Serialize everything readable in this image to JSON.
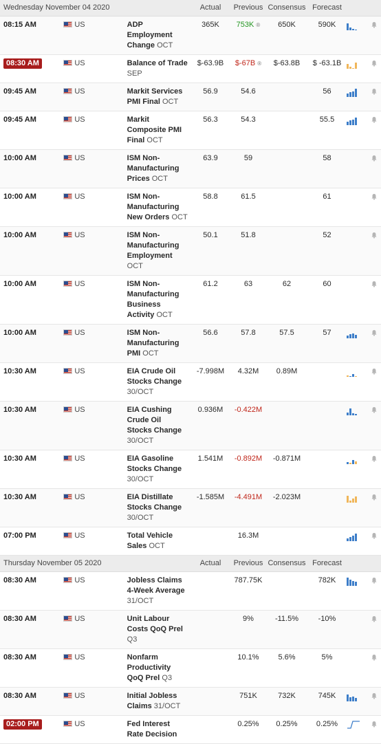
{
  "columns": {
    "actual": "Actual",
    "previous": "Previous",
    "consensus": "Consensus",
    "forecast": "Forecast"
  },
  "colors": {
    "negative": "#c0271b",
    "positive": "#239520",
    "bar_blue": "#3d7ec9",
    "bar_orange": "#f0b65a",
    "badge": "#a81d1d"
  },
  "days": [
    {
      "date": "Wednesday November 04 2020",
      "events": [
        {
          "time": "08:15 AM",
          "country": "US",
          "name": "ADP Employment Change",
          "period": "OCT",
          "actual": "365K",
          "previous": "753K",
          "previous_color": "positive",
          "previous_revised": "®",
          "consensus": "650K",
          "forecast": "590K",
          "spark": [
            10,
            4,
            2,
            1
          ],
          "spark_colors": [
            "blue",
            "blue",
            "blue",
            "blue"
          ]
        },
        {
          "time": "08:30 AM",
          "highlight": true,
          "country": "US",
          "name": "Balance of Trade",
          "period": "SEP",
          "actual": "$-63.9B",
          "previous": "$-67B",
          "previous_color": "negative",
          "previous_revised": "®",
          "consensus": "$-63.8B",
          "forecast": "$ -63.1B",
          "spark": [
            7,
            3,
            1,
            9
          ],
          "spark_colors": [
            "orange",
            "orange",
            "orange",
            "orange"
          ]
        },
        {
          "time": "09:45 AM",
          "country": "US",
          "name": "Markit Services PMI Final",
          "period": "OCT",
          "actual": "56.9",
          "previous": "54.6",
          "consensus": "",
          "forecast": "56",
          "spark": [
            5,
            7,
            8,
            12
          ],
          "spark_colors": [
            "blue",
            "blue",
            "blue",
            "blue"
          ]
        },
        {
          "time": "09:45 AM",
          "country": "US",
          "name": "Markit Composite PMI Final",
          "period": "OCT",
          "actual": "56.3",
          "previous": "54.3",
          "consensus": "",
          "forecast": "55.5",
          "spark": [
            5,
            7,
            8,
            11
          ],
          "spark_colors": [
            "blue",
            "blue",
            "blue",
            "blue"
          ]
        },
        {
          "time": "10:00 AM",
          "country": "US",
          "name": "ISM Non-Manufacturing Prices",
          "period": "OCT",
          "actual": "63.9",
          "previous": "59",
          "consensus": "",
          "forecast": "58",
          "spark": [],
          "spark_colors": []
        },
        {
          "time": "10:00 AM",
          "country": "US",
          "name": "ISM Non-Manufacturing New Orders",
          "period": "OCT",
          "actual": "58.8",
          "previous": "61.5",
          "consensus": "",
          "forecast": "61",
          "spark": [],
          "spark_colors": []
        },
        {
          "time": "10:00 AM",
          "country": "US",
          "name": "ISM Non-Manufacturing Employment",
          "period": "OCT",
          "actual": "50.1",
          "previous": "51.8",
          "consensus": "",
          "forecast": "52",
          "spark": [],
          "spark_colors": []
        },
        {
          "time": "10:00 AM",
          "country": "US",
          "name": "ISM Non-Manufacturing Business Activity",
          "period": "OCT",
          "actual": "61.2",
          "previous": "63",
          "consensus": "62",
          "forecast": "60",
          "spark": [],
          "spark_colors": []
        },
        {
          "time": "10:00 AM",
          "country": "US",
          "name": "ISM Non-Manufacturing PMI",
          "period": "OCT",
          "actual": "56.6",
          "previous": "57.8",
          "consensus": "57.5",
          "forecast": "57",
          "spark": [
            4,
            6,
            7,
            5
          ],
          "spark_colors": [
            "blue",
            "blue",
            "blue",
            "blue"
          ]
        },
        {
          "time": "10:30 AM",
          "country": "US",
          "name": "EIA Crude Oil Stocks Change",
          "period": "30/OCT",
          "actual": "-7.998M",
          "previous": "4.32M",
          "consensus": "0.89M",
          "forecast": "",
          "spark": [
            2,
            1,
            4,
            1
          ],
          "spark_colors": [
            "orange",
            "blue",
            "blue",
            "orange"
          ]
        },
        {
          "time": "10:30 AM",
          "country": "US",
          "name": "EIA Cushing Crude Oil Stocks Change",
          "period": "30/OCT",
          "actual": "0.936M",
          "previous": "-0.422M",
          "previous_color": "negative",
          "consensus": "",
          "forecast": "",
          "spark": [
            4,
            10,
            3,
            2
          ],
          "spark_colors": [
            "blue",
            "blue",
            "blue",
            "blue"
          ]
        },
        {
          "time": "10:30 AM",
          "country": "US",
          "name": "EIA Gasoline Stocks Change",
          "period": "30/OCT",
          "actual": "1.541M",
          "previous": "-0.892M",
          "previous_color": "negative",
          "consensus": "-0.871M",
          "forecast": "",
          "spark": [
            3,
            2,
            6,
            4
          ],
          "spark_colors": [
            "blue",
            "orange",
            "blue",
            "orange"
          ]
        },
        {
          "time": "10:30 AM",
          "country": "US",
          "name": "EIA Distillate Stocks Change",
          "period": "30/OCT",
          "actual": "-1.585M",
          "previous": "-4.491M",
          "previous_color": "negative",
          "consensus": "-2.023M",
          "forecast": "",
          "spark": [
            10,
            3,
            6,
            9
          ],
          "spark_colors": [
            "orange",
            "orange",
            "orange",
            "orange"
          ]
        },
        {
          "time": "07:00 PM",
          "country": "US",
          "name": "Total Vehicle Sales",
          "period": "OCT",
          "actual": "",
          "previous": "16.3M",
          "consensus": "",
          "forecast": "",
          "spark": [
            4,
            6,
            8,
            11
          ],
          "spark_colors": [
            "blue",
            "blue",
            "blue",
            "blue"
          ]
        }
      ]
    },
    {
      "date": "Thursday November 05 2020",
      "events": [
        {
          "time": "08:30 AM",
          "country": "US",
          "name": "Jobless Claims 4-Week Average",
          "period": "31/OCT",
          "actual": "",
          "previous": "787.75K",
          "consensus": "",
          "forecast": "782K",
          "spark": [
            12,
            9,
            7,
            6
          ],
          "spark_colors": [
            "blue",
            "blue",
            "blue",
            "blue"
          ]
        },
        {
          "time": "08:30 AM",
          "country": "US",
          "name": "Unit Labour Costs QoQ Prel",
          "period": "Q3",
          "actual": "",
          "previous": "9%",
          "consensus": "-11.5%",
          "forecast": "-10%",
          "spark": [],
          "spark_colors": []
        },
        {
          "time": "08:30 AM",
          "country": "US",
          "name": "Nonfarm Productivity QoQ Prel",
          "period": "Q3",
          "actual": "",
          "previous": "10.1%",
          "consensus": "5.6%",
          "forecast": "5%",
          "spark": [],
          "spark_colors": []
        },
        {
          "time": "08:30 AM",
          "country": "US",
          "name": "Initial Jobless Claims",
          "period": "31/OCT",
          "actual": "",
          "previous": "751K",
          "consensus": "732K",
          "forecast": "745K",
          "spark": [
            10,
            6,
            7,
            5
          ],
          "spark_colors": [
            "blue",
            "blue",
            "blue",
            "blue"
          ]
        },
        {
          "time": "02:00 PM",
          "highlight": true,
          "country": "US",
          "name": "Fed Interest Rate Decision",
          "period": "",
          "actual": "",
          "previous": "0.25%",
          "consensus": "0.25%",
          "forecast": "0.25%",
          "spark": [],
          "spark_colors": [],
          "spark_line": true
        }
      ]
    }
  ]
}
